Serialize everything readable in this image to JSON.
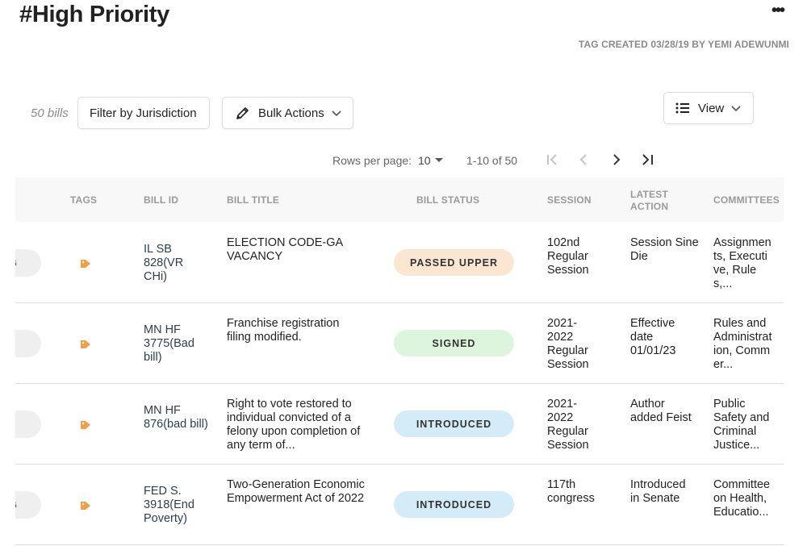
{
  "page": {
    "title": "#High Priority",
    "more_label": "•••",
    "tag_created": "TAG CREATED 03/28/19 BY YEMI ADEWUNMI"
  },
  "toolbar": {
    "bill_count": "50 bills",
    "filter_label": "Filter by Jurisdiction",
    "bulk_label": "Bulk Actions",
    "view_label": "View"
  },
  "pagination": {
    "rows_per_page_label": "Rows per page:",
    "rows_per_page_value": "10",
    "range": "1-10 of 50"
  },
  "table": {
    "columns": {
      "tags": "TAGS",
      "bill_id": "BILL ID",
      "bill_title": "BILL TITLE",
      "bill_status": "BILL STATUS",
      "session": "SESSION",
      "latest_action": "LATEST ACTION",
      "committees": "COMMITTEES"
    },
    "rows": [
      {
        "left_pill": "IG",
        "bill_id": "IL SB 828(VR CHi)",
        "title": "ELECTION CODE-GA VACANCY",
        "status": "PASSED UPPER",
        "session": "102nd Regular Session",
        "latest_action": "Session Sine Die",
        "committees": "Assignments, Executive, Rules,..."
      },
      {
        "left_pill": "",
        "bill_id": "MN HF 3775(Bad bill)",
        "title": "Franchise registration filing modified.",
        "status": "SIGNED",
        "session": "2021-2022 Regular Session",
        "latest_action": "Effective date 01/01/23",
        "committees": "Rules and Administration, Commer..."
      },
      {
        "left_pill": "",
        "bill_id": "MN HF 876(bad bill)",
        "title": "Right to vote restored to individual convicted of a felony upon completion of any term of...",
        "status": "INTRODUCED",
        "session": "2021-2022 Regular Session",
        "latest_action": "Author added Feist",
        "committees": "Public Safety and Criminal Justice..."
      },
      {
        "left_pill": "IG",
        "bill_id": "FED S. 3918(End Poverty)",
        "title": "Two-Generation Economic Empowerment Act of 2022",
        "status": "INTRODUCED",
        "session": "117th congress",
        "latest_action": "Introduced in Senate",
        "committees": "Committee on Health, Educatio..."
      }
    ]
  },
  "colors": {
    "tag_icon": "#f0a04b",
    "status_passed_upper_bg": "#fbe6d2",
    "status_signed_bg": "#dcf5dc",
    "status_introduced_bg": "#d3ecf8",
    "status_text": "#333333"
  },
  "icons": {
    "more": "more-icon",
    "bulk": "pencil-icon",
    "view": "list-icon",
    "tag": "tag-icon",
    "first": "first-page-icon",
    "prev": "prev-page-icon",
    "next": "next-page-icon",
    "last": "last-page-icon"
  }
}
